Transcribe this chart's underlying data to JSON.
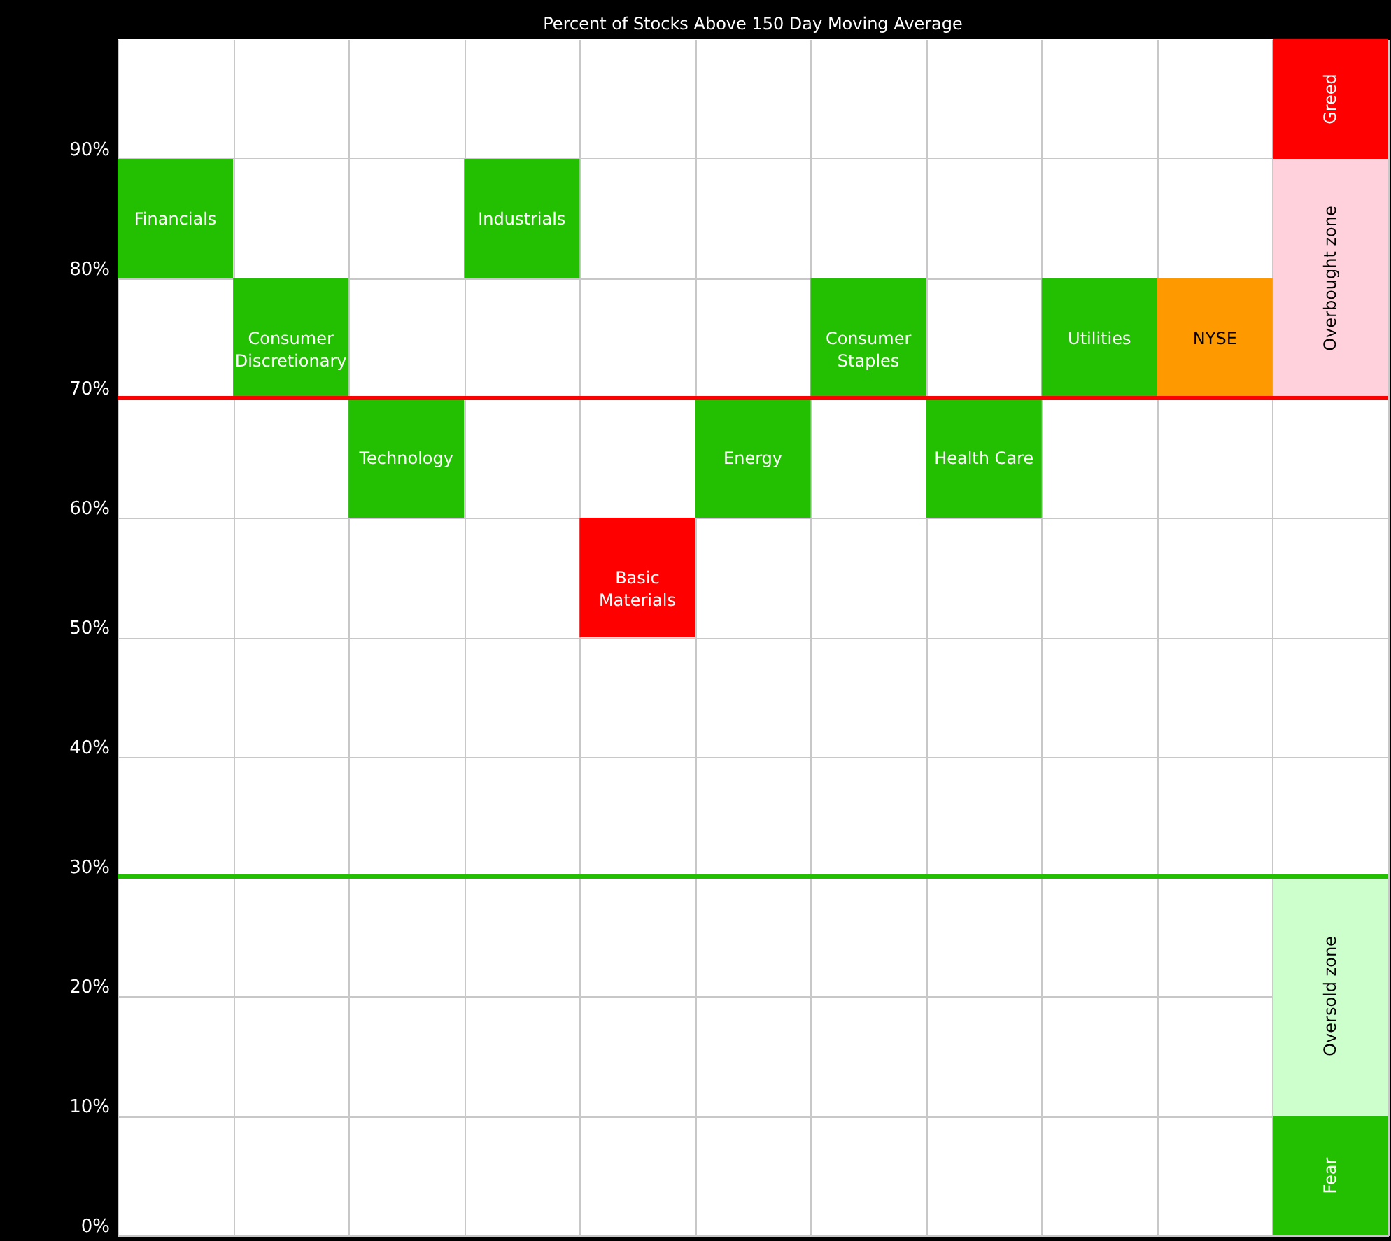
{
  "chart_data": {
    "type": "bar",
    "title": "Percent of Stocks Above 150 Day Moving Average",
    "categories": [
      "Financials",
      "Consumer Discretionary",
      "Technology",
      "Industrials",
      "Basic Materials",
      "Energy",
      "Consumer Staples",
      "Health Care",
      "Utilities",
      "NYSE",
      null
    ],
    "series": [
      {
        "values": [
          10,
          10,
          10,
          10,
          10,
          10,
          10,
          10,
          10,
          10,
          null
        ],
        "base": [
          80,
          70,
          60,
          80,
          50,
          60,
          70,
          60,
          70,
          70,
          null
        ],
        "colors": [
          "#22c000",
          "#22c000",
          "#22c000",
          "#22c000",
          "#ff0000",
          "#22c000",
          "#22c000",
          "#22c000",
          "#22c000",
          "#ff9900",
          null
        ]
      },
      {
        "name": "Fear",
        "color": "#22c000",
        "values": [
          null,
          null,
          null,
          null,
          null,
          null,
          null,
          null,
          null,
          null,
          10
        ],
        "base": [
          null,
          null,
          null,
          null,
          null,
          null,
          null,
          null,
          null,
          null,
          0
        ]
      },
      {
        "name": "Oversold zone",
        "color": "#ccffcc",
        "values": [
          null,
          null,
          null,
          null,
          null,
          null,
          null,
          null,
          null,
          null,
          20
        ],
        "base": [
          null,
          null,
          null,
          null,
          null,
          null,
          null,
          null,
          null,
          null,
          10
        ]
      },
      {
        "name": "Overbought zone",
        "color": "#ffd1dc",
        "values": [
          null,
          null,
          null,
          null,
          null,
          null,
          null,
          null,
          null,
          null,
          20
        ],
        "base": [
          null,
          null,
          null,
          null,
          null,
          null,
          null,
          null,
          null,
          null,
          70
        ]
      },
      {
        "name": "Greed",
        "color": "#ff0000",
        "values": [
          null,
          null,
          null,
          null,
          null,
          null,
          null,
          null,
          null,
          null,
          10
        ],
        "base": [
          null,
          null,
          null,
          null,
          null,
          null,
          null,
          null,
          null,
          null,
          90
        ]
      }
    ],
    "ylim": [
      0,
      100
    ],
    "yticks": [
      {
        "value": 0,
        "label": "0%"
      },
      {
        "value": 10,
        "label": "10%"
      },
      {
        "value": 20,
        "label": "20%"
      },
      {
        "value": 30,
        "label": "30%"
      },
      {
        "value": 40,
        "label": "40%"
      },
      {
        "value": 50,
        "label": "50%"
      },
      {
        "value": 60,
        "label": "60%"
      },
      {
        "value": 70,
        "label": "70%"
      },
      {
        "value": 80,
        "label": "80%"
      },
      {
        "value": 90,
        "label": "90%"
      }
    ],
    "grid": true,
    "tick_labels": "y",
    "ref_lines": [
      {
        "axis": "y",
        "value": 70,
        "color": "#ff0000"
      },
      {
        "axis": "y",
        "value": 30,
        "color": "#22c000"
      }
    ]
  }
}
